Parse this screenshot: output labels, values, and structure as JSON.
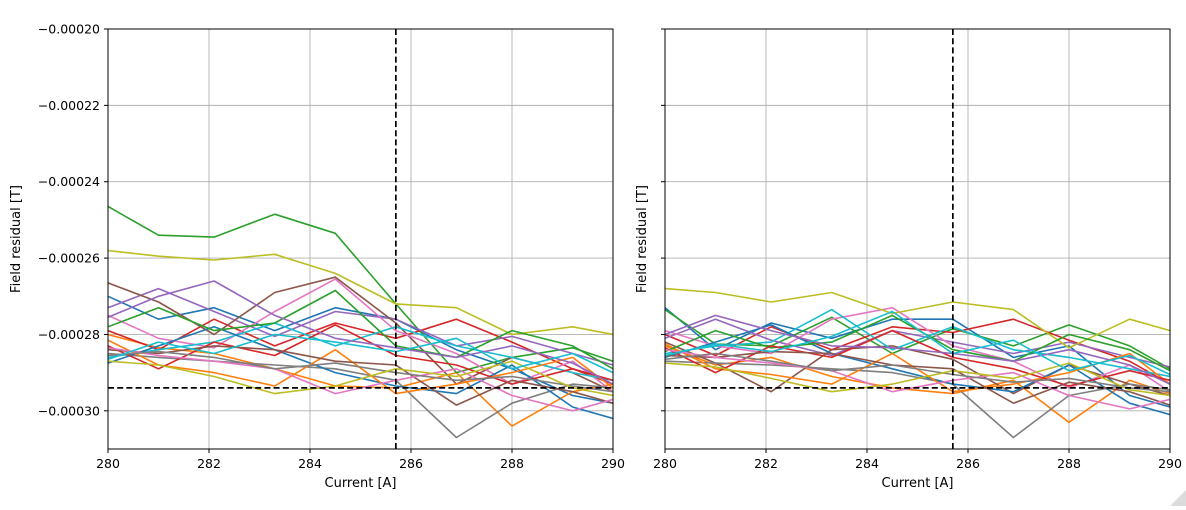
{
  "figure": {
    "background": "#ffffff",
    "grid_color": "#b0b0b0",
    "spine_color": "#000000",
    "tick_color": "#000000",
    "text_color": "#000000",
    "dashed_line_color": "#000000",
    "resize_grip": "resize-grip-icon"
  },
  "chart_data": [
    {
      "type": "line",
      "panel": "left",
      "title": "",
      "xlabel": "Current [A]",
      "ylabel": "Field residual [T]",
      "xlim": [
        280,
        290
      ],
      "ylim": [
        -0.00031,
        -0.0002
      ],
      "xticks": [
        280,
        282,
        284,
        286,
        288,
        290
      ],
      "xtick_labels": [
        "280",
        "282",
        "284",
        "286",
        "288",
        "290"
      ],
      "yticks": [
        -0.0002,
        -0.00022,
        -0.00024,
        -0.00026,
        -0.00028,
        -0.0003
      ],
      "ytick_labels": [
        "−0.00020",
        "−0.00022",
        "−0.00024",
        "−0.00026",
        "−0.00028",
        "−0.00030"
      ],
      "show_ytick_labels": true,
      "grid": true,
      "legend": "none",
      "vline_dashed_x": 285.7,
      "hline_dashed_y": -0.000294,
      "x": [
        280,
        281,
        282.1,
        283.3,
        284.5,
        285.7,
        286.9,
        288,
        289.2,
        290
      ],
      "series": [
        {
          "color": "#1f77b4",
          "values": [
            -0.00027,
            -0.000276,
            -0.000273,
            -0.000279,
            -0.000273,
            -0.000276,
            -0.000284,
            -0.000289,
            -0.000296,
            -0.000298
          ]
        },
        {
          "color": "#ff7f0e",
          "values": [
            -0.00028,
            -0.0002835,
            -0.000285,
            -0.000289,
            -0.0002935,
            -0.000294,
            -0.00029,
            -0.000304,
            -0.000295,
            -0.000293
          ]
        },
        {
          "color": "#2ca02c",
          "values": [
            -0.0002465,
            -0.000254,
            -0.0002545,
            -0.0002485,
            -0.0002535,
            -0.000272,
            -0.00029,
            -0.000286,
            -0.0002835,
            -0.000287
          ]
        },
        {
          "color": "#d62728",
          "values": [
            -0.000279,
            -0.000284,
            -0.000276,
            -0.000283,
            -0.000277,
            -0.000281,
            -0.000276,
            -0.000282,
            -0.000289,
            -0.000293
          ]
        },
        {
          "color": "#9467bd",
          "values": [
            -0.000273,
            -0.000268,
            -0.000274,
            -0.0002805,
            -0.000274,
            -0.000276,
            -0.000283,
            -0.0002805,
            -0.000285,
            -0.000288
          ]
        },
        {
          "color": "#8c564b",
          "values": [
            -0.0002665,
            -0.0002715,
            -0.00028,
            -0.000269,
            -0.000265,
            -0.000277,
            -0.000293,
            -0.000286,
            -0.00029,
            -0.000295
          ]
        },
        {
          "color": "#e377c2",
          "values": [
            -0.000275,
            -0.000281,
            -0.0002835,
            -0.000274,
            -0.0002655,
            -0.000279,
            -0.000285,
            -0.000293,
            -0.000287,
            -0.000295
          ]
        },
        {
          "color": "#7f7f7f",
          "values": [
            -0.000285,
            -0.000286,
            -0.000287,
            -0.000288,
            -0.000289,
            -0.000292,
            -0.000307,
            -0.000298,
            -0.000293,
            -0.000294
          ]
        },
        {
          "color": "#bcbd22",
          "values": [
            -0.000258,
            -0.0002595,
            -0.0002605,
            -0.000259,
            -0.000264,
            -0.000272,
            -0.000273,
            -0.00028,
            -0.000278,
            -0.00028
          ]
        },
        {
          "color": "#17becf",
          "values": [
            -0.000286,
            -0.000284,
            -0.000282,
            -0.000277,
            -0.000283,
            -0.000278,
            -0.000283,
            -0.000286,
            -0.00029,
            -0.000292
          ]
        },
        {
          "color": "#1f77b4",
          "values": [
            -0.0002875,
            -0.000283,
            -0.000278,
            -0.000284,
            -0.00029,
            -0.0002935,
            -0.0002955,
            -0.000288,
            -0.000299,
            -0.000302
          ]
        },
        {
          "color": "#ff7f0e",
          "values": [
            -0.0002815,
            -0.000288,
            -0.00029,
            -0.0002935,
            -0.000284,
            -0.0002955,
            -0.000293,
            -0.00029,
            -0.000286,
            -0.000294
          ]
        },
        {
          "color": "#2ca02c",
          "values": [
            -0.000278,
            -0.000273,
            -0.000279,
            -0.000277,
            -0.0002685,
            -0.000283,
            -0.000286,
            -0.000279,
            -0.000283,
            -0.000289
          ]
        },
        {
          "color": "#d62728",
          "values": [
            -0.000283,
            -0.000289,
            -0.000282,
            -0.0002855,
            -0.0002775,
            -0.0002855,
            -0.000288,
            -0.000293,
            -0.000289,
            -0.000292
          ]
        },
        {
          "color": "#9467bd",
          "values": [
            -0.0002755,
            -0.00027,
            -0.000266,
            -0.000275,
            -0.000281,
            -0.0002835,
            -0.000286,
            -0.000283,
            -0.0002875,
            -0.000293
          ]
        },
        {
          "color": "#8c564b",
          "values": [
            -0.000284,
            -0.000285,
            -0.000283,
            -0.000284,
            -0.000287,
            -0.000288,
            -0.0002985,
            -0.000292,
            -0.000295,
            -0.000298
          ]
        },
        {
          "color": "#e377c2",
          "values": [
            -0.0002835,
            -0.0002855,
            -0.000287,
            -0.000289,
            -0.0002955,
            -0.000292,
            -0.000289,
            -0.000296,
            -0.0003,
            -0.000297
          ]
        },
        {
          "color": "#7f7f7f",
          "values": [
            -0.0002855,
            -0.0002845,
            -0.000286,
            -0.000289,
            -0.0002875,
            -0.00029,
            -0.000292,
            -0.000291,
            -0.0002935,
            -0.000295
          ]
        },
        {
          "color": "#bcbd22",
          "values": [
            -0.000287,
            -0.000288,
            -0.000291,
            -0.0002955,
            -0.0002935,
            -0.000289,
            -0.000291,
            -0.000287,
            -0.000294,
            -0.000296
          ]
        },
        {
          "color": "#17becf",
          "values": [
            -0.0002865,
            -0.000282,
            -0.000285,
            -0.00028,
            -0.000282,
            -0.0002845,
            -0.000281,
            -0.000289,
            -0.000285,
            -0.00029
          ]
        }
      ]
    },
    {
      "type": "line",
      "panel": "right",
      "title": "",
      "xlabel": "Current [A]",
      "ylabel": "Field residual [T]",
      "xlim": [
        280,
        290
      ],
      "ylim": [
        -0.00031,
        -0.0002
      ],
      "xticks": [
        280,
        282,
        284,
        286,
        288,
        290
      ],
      "xtick_labels": [
        "280",
        "282",
        "284",
        "286",
        "288",
        "290"
      ],
      "yticks": [
        -0.0002,
        -0.00022,
        -0.00024,
        -0.00026,
        -0.00028,
        -0.0003
      ],
      "ytick_labels": [],
      "show_ytick_labels": false,
      "grid": true,
      "legend": "none",
      "vline_dashed_x": 285.7,
      "hline_dashed_y": -0.000294,
      "x": [
        280,
        281,
        282.1,
        283.3,
        284.5,
        285.7,
        286.9,
        288,
        289.2,
        290
      ],
      "series": [
        {
          "color": "#1f77b4",
          "values": [
            -0.000273,
            -0.000284,
            -0.000277,
            -0.000281,
            -0.000276,
            -0.000276,
            -0.000286,
            -0.000283,
            -0.000296,
            -0.000299
          ]
        },
        {
          "color": "#ff7f0e",
          "values": [
            -0.000283,
            -0.000288,
            -0.000286,
            -0.000291,
            -0.000294,
            -0.0002955,
            -0.000292,
            -0.000303,
            -0.000292,
            -0.0002955
          ]
        },
        {
          "color": "#2ca02c",
          "values": [
            -0.0002735,
            -0.0002825,
            -0.000283,
            -0.0002755,
            -0.000285,
            -0.0002785,
            -0.000283,
            -0.0002775,
            -0.000283,
            -0.000289
          ]
        },
        {
          "color": "#d62728",
          "values": [
            -0.00028,
            -0.0002855,
            -0.000278,
            -0.000284,
            -0.000278,
            -0.0002795,
            -0.000276,
            -0.0002815,
            -0.000287,
            -0.000293
          ]
        },
        {
          "color": "#9467bd",
          "values": [
            -0.000281,
            -0.000276,
            -0.0002815,
            -0.0002855,
            -0.000279,
            -0.000282,
            -0.000285,
            -0.000282,
            -0.000286,
            -0.0002885
          ]
        },
        {
          "color": "#8c564b",
          "values": [
            -0.000282,
            -0.0002875,
            -0.000295,
            -0.000284,
            -0.000283,
            -0.0002865,
            -0.0002955,
            -0.000288,
            -0.000293,
            -0.000296
          ]
        },
        {
          "color": "#e377c2",
          "values": [
            -0.000279,
            -0.000283,
            -0.000285,
            -0.000276,
            -0.000273,
            -0.000283,
            -0.000287,
            -0.000294,
            -0.000288,
            -0.000295
          ]
        },
        {
          "color": "#7f7f7f",
          "values": [
            -0.000287,
            -0.0002875,
            -0.000288,
            -0.000289,
            -0.00029,
            -0.000293,
            -0.000307,
            -0.000296,
            -0.000293,
            -0.0002945
          ]
        },
        {
          "color": "#bcbd22",
          "values": [
            -0.000268,
            -0.000269,
            -0.0002715,
            -0.000269,
            -0.0002745,
            -0.0002715,
            -0.0002735,
            -0.0002835,
            -0.000276,
            -0.000279
          ]
        },
        {
          "color": "#17becf",
          "values": [
            -0.000285,
            -0.000283,
            -0.000282,
            -0.0002735,
            -0.000284,
            -0.000278,
            -0.000284,
            -0.000286,
            -0.000289,
            -0.000291
          ]
        },
        {
          "color": "#1f77b4",
          "values": [
            -0.000286,
            -0.000282,
            -0.0002775,
            -0.000285,
            -0.000289,
            -0.000293,
            -0.000295,
            -0.000288,
            -0.000298,
            -0.000301
          ]
        },
        {
          "color": "#ff7f0e",
          "values": [
            -0.0002825,
            -0.000289,
            -0.0002905,
            -0.000293,
            -0.000285,
            -0.000295,
            -0.000293,
            -0.00029,
            -0.000285,
            -0.000293
          ]
        },
        {
          "color": "#2ca02c",
          "values": [
            -0.0002845,
            -0.000279,
            -0.0002835,
            -0.000282,
            -0.000275,
            -0.000284,
            -0.000287,
            -0.00028,
            -0.000284,
            -0.0002895
          ]
        },
        {
          "color": "#d62728",
          "values": [
            -0.0002835,
            -0.00029,
            -0.000283,
            -0.000286,
            -0.000279,
            -0.000286,
            -0.000289,
            -0.0002935,
            -0.0002895,
            -0.000292
          ]
        },
        {
          "color": "#9467bd",
          "values": [
            -0.00028,
            -0.000275,
            -0.000279,
            -0.000283,
            -0.0002835,
            -0.000285,
            -0.000287,
            -0.000284,
            -0.000288,
            -0.000293
          ]
        },
        {
          "color": "#8c564b",
          "values": [
            -0.0002855,
            -0.000286,
            -0.0002845,
            -0.000285,
            -0.000288,
            -0.000289,
            -0.000298,
            -0.0002925,
            -0.000295,
            -0.0002985
          ]
        },
        {
          "color": "#e377c2",
          "values": [
            -0.000284,
            -0.000286,
            -0.0002875,
            -0.0002895,
            -0.000295,
            -0.000292,
            -0.00029,
            -0.000296,
            -0.0002995,
            -0.000297
          ]
        },
        {
          "color": "#7f7f7f",
          "values": [
            -0.0002865,
            -0.000285,
            -0.000287,
            -0.0002895,
            -0.000288,
            -0.0002905,
            -0.0002925,
            -0.0002915,
            -0.000294,
            -0.000295
          ]
        },
        {
          "color": "#bcbd22",
          "values": [
            -0.0002875,
            -0.0002885,
            -0.0002915,
            -0.000295,
            -0.000293,
            -0.0002895,
            -0.0002915,
            -0.0002875,
            -0.0002945,
            -0.000296
          ]
        },
        {
          "color": "#17becf",
          "values": [
            -0.0002855,
            -0.0002825,
            -0.0002845,
            -0.0002805,
            -0.000274,
            -0.000285,
            -0.0002815,
            -0.0002895,
            -0.0002855,
            -0.0002905
          ]
        }
      ]
    }
  ]
}
